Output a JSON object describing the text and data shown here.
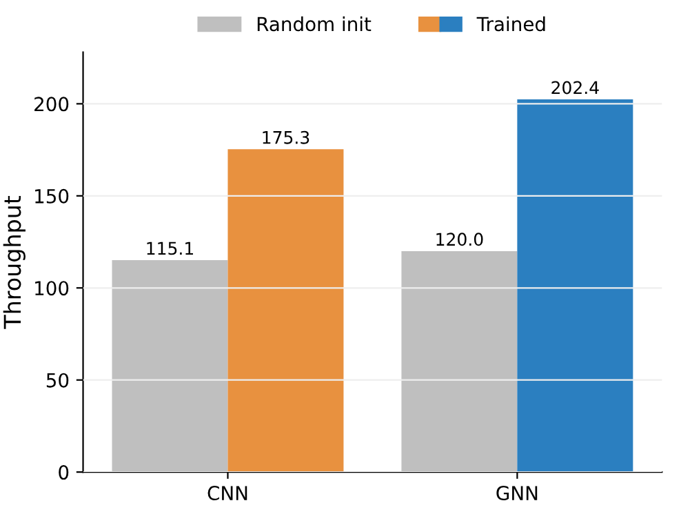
{
  "chart_data": {
    "type": "bar",
    "ylabel": "Throughput",
    "categories": [
      "CNN",
      "GNN"
    ],
    "series": [
      {
        "name": "Random init",
        "color": "#bfbfbf",
        "values": [
          115.1,
          120.0
        ],
        "value_labels": [
          "115.1",
          "120.0"
        ]
      },
      {
        "name": "Trained",
        "colors": [
          "#e8913f",
          "#2b7fc0"
        ],
        "values": [
          175.3,
          202.4
        ],
        "value_labels": [
          "175.3",
          "202.4"
        ]
      }
    ],
    "ylim": [
      0,
      228
    ],
    "yticks": [
      0,
      50,
      100,
      150,
      200
    ],
    "grid": "y",
    "legend": "top"
  }
}
